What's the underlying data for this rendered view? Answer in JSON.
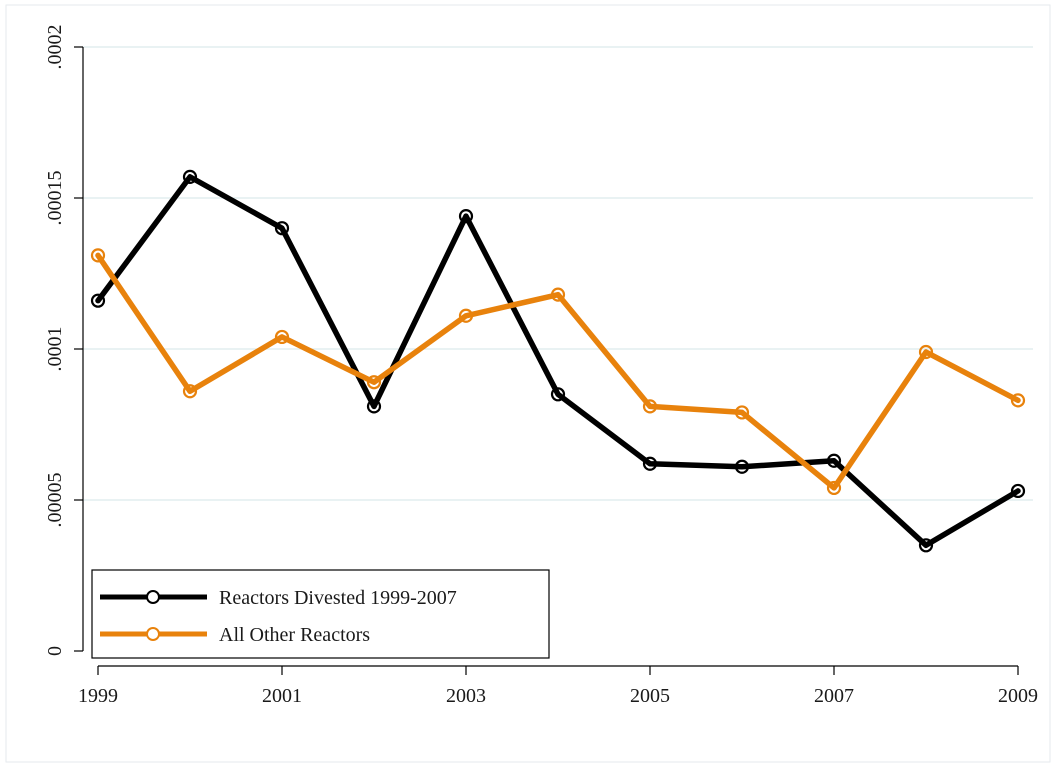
{
  "chart_data": {
    "type": "line",
    "x": [
      1999,
      2000,
      2001,
      2002,
      2003,
      2004,
      2005,
      2006,
      2007,
      2008,
      2009
    ],
    "x_ticks": [
      1999,
      2001,
      2003,
      2005,
      2007,
      2009
    ],
    "x_tick_labels": [
      "1999",
      "2001",
      "2003",
      "2005",
      "2007",
      "2009"
    ],
    "xlim": [
      1999,
      2009
    ],
    "y_ticks": [
      0,
      5e-05,
      0.0001,
      0.00015,
      0.0002
    ],
    "y_tick_labels": [
      "0",
      ".00005",
      ".0001",
      ".00015",
      ".0002"
    ],
    "ylim": [
      0,
      0.0002
    ],
    "grid": true,
    "legend_position": "bottom-left",
    "series": [
      {
        "name": "Reactors Divested 1999-2007",
        "color": "#000000",
        "values": [
          0.000116,
          0.000157,
          0.00014,
          8.1e-05,
          0.000144,
          8.5e-05,
          6.2e-05,
          6.1e-05,
          6.3e-05,
          3.5e-05,
          5.3e-05
        ]
      },
      {
        "name": "All Other Reactors",
        "color": "#e8820c",
        "values": [
          0.000131,
          8.6e-05,
          0.000104,
          8.9e-05,
          0.000111,
          0.000118,
          8.1e-05,
          7.9e-05,
          5.4e-05,
          9.9e-05,
          8.3e-05
        ]
      }
    ]
  }
}
